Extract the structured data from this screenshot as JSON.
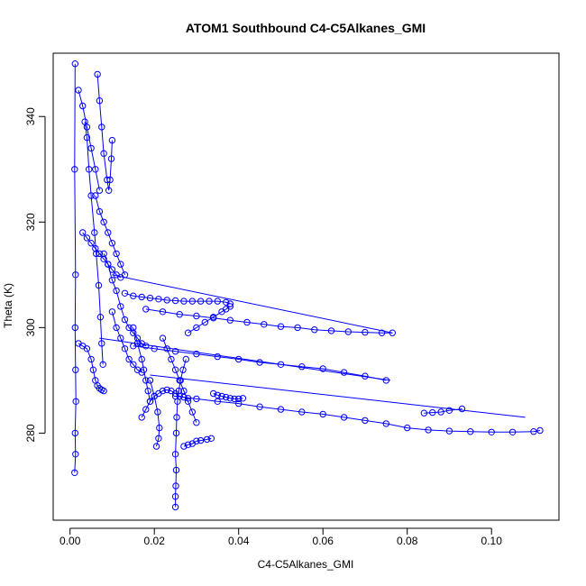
{
  "chart_data": {
    "type": "scatter",
    "title": "ATOM1 Southbound C4-C5Alkanes_GMI",
    "xlabel": "C4-C5Alkanes_GMI",
    "ylabel": "Theta (K)",
    "xlim": [
      -0.004,
      0.116
    ],
    "ylim": [
      263.5,
      352.0
    ],
    "x_ticks": [
      0.0,
      0.02,
      0.04,
      0.06,
      0.08,
      0.1
    ],
    "x_tick_labels": [
      "0.00",
      "0.02",
      "0.04",
      "0.06",
      "0.08",
      "0.10"
    ],
    "y_ticks": [
      280,
      300,
      320,
      340
    ],
    "y_tick_labels": [
      "280",
      "300",
      "320",
      "340"
    ],
    "grid": false,
    "legend": "none",
    "colors": {
      "series": "#0000ff",
      "axis": "#000000",
      "background": "#ffffff"
    },
    "series": [
      {
        "style": "line-with-open-circles",
        "x": [
          0.0011,
          0.0013,
          0.0012,
          0.0014,
          0.0013,
          0.0012,
          0.0013,
          0.0011,
          0.0012
        ],
        "y": [
          272.5,
          276.0,
          280.0,
          286.0,
          292.0,
          300.0,
          310.0,
          330.0,
          350.0
        ]
      },
      {
        "style": "line-with-open-circles",
        "x": [
          0.0035,
          0.004,
          0.0045,
          0.005,
          0.0058,
          0.0062,
          0.0068,
          0.0072,
          0.0075,
          0.0078
        ],
        "y": [
          339.0,
          336.0,
          330.0,
          325.0,
          318.0,
          314.0,
          308.0,
          302.0,
          297.0,
          293.0
        ]
      },
      {
        "style": "line-with-open-circles",
        "x": [
          0.0065,
          0.007,
          0.0075,
          0.008,
          0.0088,
          0.0092,
          0.0095,
          0.0098,
          0.01
        ],
        "y": [
          348.0,
          343.0,
          338.0,
          333.0,
          328.0,
          326.0,
          328.0,
          332.0,
          335.5
        ]
      },
      {
        "style": "line-with-open-circles",
        "x": [
          0.025,
          0.025,
          0.0251,
          0.0252,
          0.025,
          0.0252,
          0.0253,
          0.0255,
          0.0258,
          0.0262,
          0.0268,
          0.0275
        ],
        "y": [
          266.0,
          268.0,
          270.0,
          273.0,
          276.0,
          280.0,
          283.0,
          286.0,
          288.0,
          290.0,
          292.0,
          294.0
        ]
      },
      {
        "style": "line-with-open-circles",
        "x": [
          0.0205,
          0.021,
          0.0212,
          0.0208,
          0.02,
          0.019
        ],
        "y": [
          277.5,
          279.0,
          281.0,
          284.0,
          287.0,
          290.0
        ]
      },
      {
        "style": "line-with-open-circles",
        "x": [
          0.027,
          0.028,
          0.029,
          0.03,
          0.031,
          0.0325,
          0.0335
        ],
        "y": [
          277.5,
          277.8,
          278.0,
          278.5,
          278.6,
          278.8,
          279.0
        ]
      },
      {
        "style": "line-with-open-circles",
        "x": [
          0.017,
          0.018,
          0.019,
          0.02,
          0.021,
          0.022,
          0.023,
          0.024,
          0.025,
          0.026,
          0.027,
          0.028
        ],
        "y": [
          283.0,
          284.5,
          286.0,
          287.0,
          287.5,
          288.0,
          288.2,
          288.0,
          287.5,
          287.0,
          286.8,
          286.6
        ]
      },
      {
        "style": "line-with-open-circles",
        "x": [
          0.034,
          0.035,
          0.036,
          0.037,
          0.038,
          0.039,
          0.04,
          0.041
        ],
        "y": [
          287.5,
          287.2,
          287.0,
          286.8,
          286.6,
          286.5,
          286.5,
          286.6
        ]
      },
      {
        "style": "line-with-open-circles",
        "x": [
          0.013,
          0.015,
          0.017,
          0.019,
          0.021,
          0.023,
          0.025,
          0.027,
          0.029,
          0.031,
          0.033,
          0.035,
          0.037,
          0.038
        ],
        "y": [
          306.5,
          306.0,
          305.8,
          305.6,
          305.4,
          305.2,
          305.1,
          305.0,
          305.0,
          305.0,
          305.0,
          305.0,
          304.8,
          304.5
        ]
      },
      {
        "style": "line-with-open-circles",
        "x": [
          0.028,
          0.03,
          0.032,
          0.034,
          0.036,
          0.037,
          0.038
        ],
        "y": [
          299.0,
          300.0,
          301.0,
          302.0,
          303.0,
          303.5,
          304.0
        ]
      },
      {
        "style": "line-with-open-circles",
        "x": [
          0.018,
          0.022,
          0.026,
          0.03,
          0.034,
          0.038,
          0.042,
          0.046,
          0.05,
          0.054,
          0.058,
          0.062,
          0.066,
          0.07,
          0.074,
          0.0765
        ],
        "y": [
          303.5,
          303.0,
          302.5,
          302.2,
          301.8,
          301.4,
          301.0,
          300.6,
          300.2,
          300.0,
          299.6,
          299.4,
          299.2,
          299.1,
          299.0,
          299.0
        ]
      },
      {
        "style": "line",
        "x": [
          0.01,
          0.0765
        ],
        "y": [
          310.0,
          299.0
        ]
      },
      {
        "style": "line-with-open-circles",
        "x": [
          0.015,
          0.02,
          0.025,
          0.03,
          0.035,
          0.04,
          0.045,
          0.05,
          0.055,
          0.06,
          0.065,
          0.07,
          0.075
        ],
        "y": [
          296.5,
          296.0,
          295.5,
          295.0,
          294.5,
          294.0,
          293.4,
          293.0,
          292.6,
          292.2,
          291.5,
          290.8,
          290.0
        ]
      },
      {
        "style": "line",
        "x": [
          0.007,
          0.076
        ],
        "y": [
          298.0,
          290.0
        ]
      },
      {
        "style": "line-with-open-circles",
        "x": [
          0.025,
          0.03,
          0.035,
          0.04,
          0.045,
          0.05,
          0.055,
          0.06,
          0.065,
          0.07,
          0.075,
          0.08,
          0.085,
          0.09,
          0.095,
          0.1,
          0.105,
          0.11,
          0.1115
        ],
        "y": [
          287.0,
          286.5,
          286.0,
          285.6,
          285.0,
          284.5,
          284.0,
          283.6,
          283.0,
          282.4,
          281.8,
          281.0,
          280.6,
          280.4,
          280.3,
          280.2,
          280.2,
          280.3,
          280.5
        ]
      },
      {
        "style": "line",
        "x": [
          0.019,
          0.108
        ],
        "y": [
          291.0,
          283.0
        ]
      },
      {
        "style": "line-with-open-circles",
        "x": [
          0.084,
          0.086,
          0.088,
          0.09,
          0.093
        ],
        "y": [
          283.8,
          283.9,
          284.0,
          284.3,
          284.6
        ]
      },
      {
        "style": "line-with-open-circles",
        "x": [
          0.002,
          0.003,
          0.004,
          0.005,
          0.0055,
          0.006,
          0.0065,
          0.007,
          0.0075,
          0.008
        ],
        "y": [
          297.0,
          296.5,
          296.0,
          294.0,
          292.0,
          290.0,
          289.0,
          288.5,
          288.2,
          288.0
        ]
      },
      {
        "style": "line-with-open-circles",
        "x": [
          0.008,
          0.009,
          0.01,
          0.011,
          0.012,
          0.013,
          0.014,
          0.015,
          0.016,
          0.017,
          0.018
        ],
        "y": [
          314.0,
          312.0,
          309.0,
          307.0,
          304.0,
          301.5,
          300.0,
          299.0,
          298.0,
          297.0,
          296.5
        ]
      },
      {
        "style": "line-with-open-circles",
        "x": [
          0.01,
          0.011,
          0.012,
          0.013,
          0.014,
          0.015,
          0.016,
          0.017
        ],
        "y": [
          303.0,
          300.0,
          298.0,
          296.0,
          294.0,
          293.0,
          292.0,
          291.5
        ]
      },
      {
        "style": "line-with-open-circles",
        "x": [
          0.006,
          0.007,
          0.008,
          0.009,
          0.01,
          0.011,
          0.012,
          0.013
        ],
        "y": [
          325.0,
          322.0,
          320.0,
          318.0,
          316.0,
          314.0,
          312.0,
          310.0
        ]
      },
      {
        "style": "line-with-open-circles",
        "x": [
          0.002,
          0.003,
          0.004,
          0.005,
          0.006,
          0.007
        ],
        "y": [
          345.0,
          342.0,
          338.0,
          334.0,
          330.0,
          326.0
        ]
      },
      {
        "style": "line-with-open-circles",
        "x": [
          0.003,
          0.004,
          0.005,
          0.006,
          0.007,
          0.008,
          0.009,
          0.01,
          0.011,
          0.012
        ],
        "y": [
          318.0,
          317.0,
          316.0,
          315.0,
          314.0,
          313.0,
          312.0,
          311.0,
          310.0,
          309.5
        ]
      },
      {
        "style": "line-with-open-circles",
        "x": [
          0.022,
          0.023,
          0.024,
          0.025,
          0.026,
          0.027,
          0.028,
          0.029,
          0.03
        ],
        "y": [
          298.0,
          296.0,
          294.0,
          292.0,
          290.0,
          288.0,
          286.0,
          284.0,
          282.0
        ]
      },
      {
        "style": "line-with-open-circles",
        "x": [
          0.015,
          0.016,
          0.017,
          0.0175,
          0.018,
          0.0185,
          0.019
        ],
        "y": [
          300.0,
          297.0,
          294.0,
          292.0,
          290.0,
          288.0,
          286.0
        ]
      }
    ]
  }
}
